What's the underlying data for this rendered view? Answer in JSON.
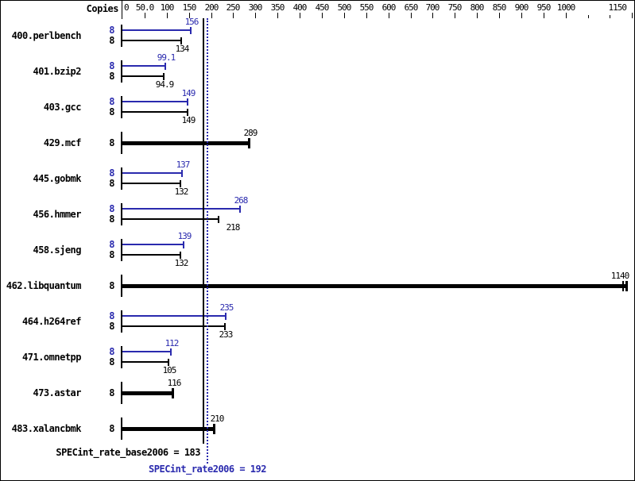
{
  "header": {
    "copies_label": "Copies"
  },
  "colors": {
    "peak_blue": "#2a2aae",
    "base_black": "#000000",
    "background": "#ffffff"
  },
  "chart_data": {
    "type": "bar",
    "orientation": "horizontal",
    "title": "",
    "xlabel": "Copies",
    "xlim": [
      0,
      1160
    ],
    "legend_position": "none",
    "grid": false,
    "axis_ticks": [
      {
        "v": 0,
        "label": "0"
      },
      {
        "v": 50,
        "label": "50.0"
      },
      {
        "v": 100,
        "label": "100"
      },
      {
        "v": 150,
        "label": "150"
      },
      {
        "v": 200,
        "label": "200"
      },
      {
        "v": 250,
        "label": "250"
      },
      {
        "v": 300,
        "label": "300"
      },
      {
        "v": 350,
        "label": "350"
      },
      {
        "v": 400,
        "label": "400"
      },
      {
        "v": 450,
        "label": "450"
      },
      {
        "v": 500,
        "label": "500"
      },
      {
        "v": 550,
        "label": "550"
      },
      {
        "v": 600,
        "label": "600"
      },
      {
        "v": 650,
        "label": "650"
      },
      {
        "v": 700,
        "label": "700"
      },
      {
        "v": 750,
        "label": "750"
      },
      {
        "v": 800,
        "label": "800"
      },
      {
        "v": 850,
        "label": "850"
      },
      {
        "v": 900,
        "label": "900"
      },
      {
        "v": 950,
        "label": "950"
      },
      {
        "v": 1000,
        "label": "1000"
      },
      {
        "v": 1050,
        "label": "",
        "small": true
      },
      {
        "v": 1100,
        "label": "",
        "small": true
      },
      {
        "v": 1150,
        "label": "1150"
      }
    ],
    "series": [
      {
        "name": "peak",
        "color_key": "peak_blue"
      },
      {
        "name": "base",
        "color_key": "base_black"
      }
    ],
    "benchmarks": [
      {
        "name": "400.perlbench",
        "copies": "8",
        "peak": 156,
        "peak_label": "156",
        "base": 134,
        "base_label": "134"
      },
      {
        "name": "401.bzip2",
        "copies": "8",
        "peak": 99.1,
        "peak_label": "99.1",
        "base": 94.9,
        "base_label": "94.9"
      },
      {
        "name": "403.gcc",
        "copies": "8",
        "peak": 149,
        "peak_label": "149",
        "base": 149,
        "base_label": "149"
      },
      {
        "name": "429.mcf",
        "copies": "8",
        "single": true,
        "base": 289,
        "base_label": "289"
      },
      {
        "name": "445.gobmk",
        "copies": "8",
        "peak": 137,
        "peak_label": "137",
        "base": 132,
        "base_label": "132"
      },
      {
        "name": "456.hmmer",
        "copies": "8",
        "peak": 268,
        "peak_label": "268",
        "base": 218,
        "base_label": "218",
        "base_label_dx": 17
      },
      {
        "name": "458.sjeng",
        "copies": "8",
        "peak": 139,
        "peak_label": "139",
        "base": 132,
        "base_label": "132"
      },
      {
        "name": "462.libquantum",
        "copies": "8",
        "single": true,
        "base": 1140,
        "base_label": "1140",
        "base_label_dx": -10,
        "double_cap": true
      },
      {
        "name": "464.h264ref",
        "copies": "8",
        "peak": 235,
        "peak_label": "235",
        "base": 233,
        "base_label": "233"
      },
      {
        "name": "471.omnetpp",
        "copies": "8",
        "peak": 112,
        "peak_label": "112",
        "base": 105,
        "base_label": "105"
      },
      {
        "name": "473.astar",
        "copies": "8",
        "single": true,
        "base": 116,
        "base_label": "116"
      },
      {
        "name": "483.xalancbmk",
        "copies": "8",
        "single": true,
        "base": 210,
        "base_label": "210",
        "base_label_dx": 2
      }
    ],
    "reference_lines": [
      {
        "name": "base_mean",
        "value": 183,
        "style": "solid",
        "color_key": "base_black",
        "label": "SPECint_rate_base2006 = 183"
      },
      {
        "name": "peak_mean",
        "value": 192,
        "style": "dotted",
        "color_key": "peak_blue",
        "label": "SPECint_rate2006 = 192"
      }
    ]
  }
}
